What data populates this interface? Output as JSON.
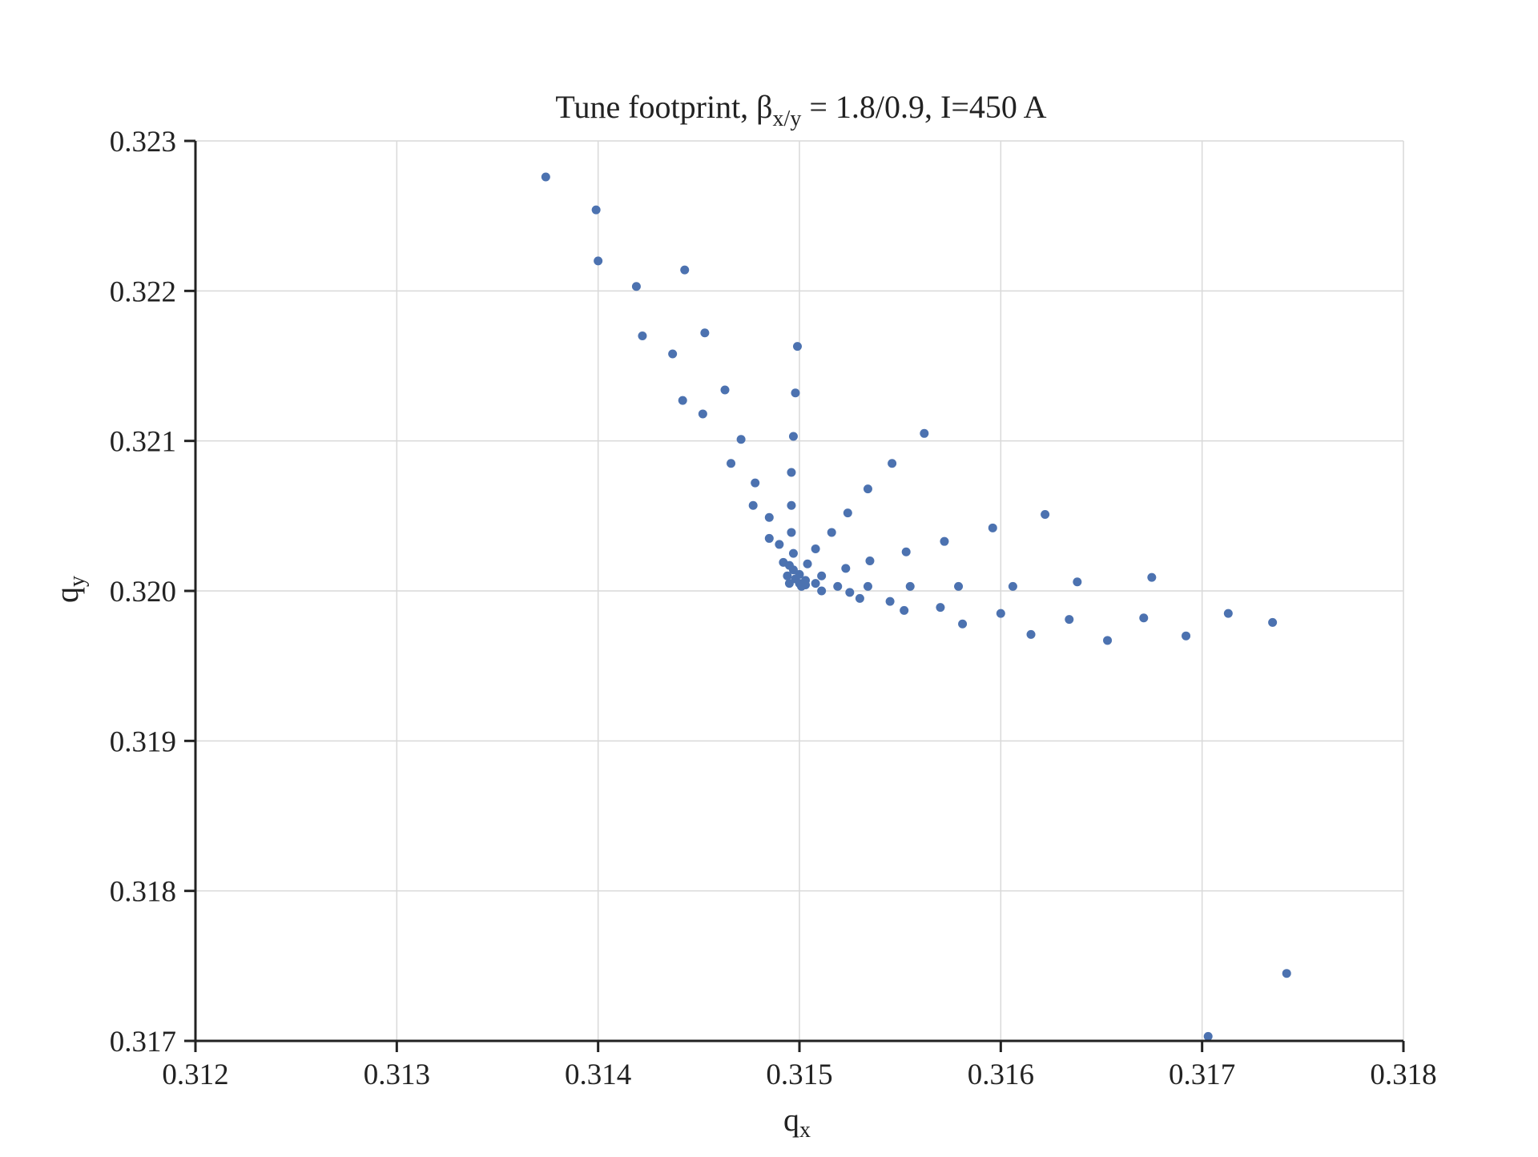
{
  "chart_data": {
    "type": "scatter",
    "title_parts": {
      "prefix": "Tune footprint, β",
      "sub": "x/y",
      "suffix": " = 1.8/0.9, I=450 A"
    },
    "xlabel_parts": {
      "base": "q",
      "sub": "x"
    },
    "ylabel_parts": {
      "base": "q",
      "sub": "y"
    },
    "xlim": [
      0.312,
      0.318
    ],
    "ylim": [
      0.317,
      0.323
    ],
    "xticks": [
      0.312,
      0.313,
      0.314,
      0.315,
      0.316,
      0.317,
      0.318
    ],
    "yticks": [
      0.317,
      0.318,
      0.319,
      0.32,
      0.321,
      0.322,
      0.323
    ],
    "xtick_labels": [
      "0.312",
      "0.313",
      "0.314",
      "0.315",
      "0.316",
      "0.317",
      "0.318"
    ],
    "ytick_labels": [
      "0.317",
      "0.318",
      "0.319",
      "0.320",
      "0.321",
      "0.322",
      "0.323"
    ],
    "grid": true,
    "marker_color": "#4c72b0",
    "points": [
      [
        0.31374,
        0.32276
      ],
      [
        0.31399,
        0.32254
      ],
      [
        0.314,
        0.3222
      ],
      [
        0.31443,
        0.32214
      ],
      [
        0.31419,
        0.32203
      ],
      [
        0.31422,
        0.3217
      ],
      [
        0.31453,
        0.32172
      ],
      [
        0.31437,
        0.32158
      ],
      [
        0.31499,
        0.32163
      ],
      [
        0.31463,
        0.32134
      ],
      [
        0.31442,
        0.32127
      ],
      [
        0.31452,
        0.32118
      ],
      [
        0.31498,
        0.32132
      ],
      [
        0.31471,
        0.32101
      ],
      [
        0.31497,
        0.32103
      ],
      [
        0.31466,
        0.32085
      ],
      [
        0.31496,
        0.32079
      ],
      [
        0.31562,
        0.32105
      ],
      [
        0.31546,
        0.32085
      ],
      [
        0.31478,
        0.32072
      ],
      [
        0.31534,
        0.32068
      ],
      [
        0.31477,
        0.32057
      ],
      [
        0.31496,
        0.32057
      ],
      [
        0.31485,
        0.32049
      ],
      [
        0.31524,
        0.32052
      ],
      [
        0.31596,
        0.32042
      ],
      [
        0.31622,
        0.32051
      ],
      [
        0.31516,
        0.32039
      ],
      [
        0.31496,
        0.32039
      ],
      [
        0.31485,
        0.32035
      ],
      [
        0.3149,
        0.32031
      ],
      [
        0.31572,
        0.32033
      ],
      [
        0.31508,
        0.32028
      ],
      [
        0.31497,
        0.32025
      ],
      [
        0.31553,
        0.32026
      ],
      [
        0.31492,
        0.32019
      ],
      [
        0.31495,
        0.32017
      ],
      [
        0.31504,
        0.32018
      ],
      [
        0.31535,
        0.3202
      ],
      [
        0.31523,
        0.32015
      ],
      [
        0.31497,
        0.32014
      ],
      [
        0.31494,
        0.3201
      ],
      [
        0.315,
        0.32011
      ],
      [
        0.31511,
        0.3201
      ],
      [
        0.31498,
        0.32008
      ],
      [
        0.31503,
        0.32007
      ],
      [
        0.31495,
        0.32005
      ],
      [
        0.315,
        0.32005
      ],
      [
        0.31508,
        0.32005
      ],
      [
        0.31503,
        0.32004
      ],
      [
        0.31501,
        0.32003
      ],
      [
        0.31511,
        0.32
      ],
      [
        0.31519,
        0.32003
      ],
      [
        0.31525,
        0.31999
      ],
      [
        0.3153,
        0.31995
      ],
      [
        0.31534,
        0.32003
      ],
      [
        0.31545,
        0.31993
      ],
      [
        0.31552,
        0.31987
      ],
      [
        0.31555,
        0.32003
      ],
      [
        0.3157,
        0.31989
      ],
      [
        0.31579,
        0.32003
      ],
      [
        0.31581,
        0.31978
      ],
      [
        0.316,
        0.31985
      ],
      [
        0.31606,
        0.32003
      ],
      [
        0.31615,
        0.31971
      ],
      [
        0.31634,
        0.31981
      ],
      [
        0.31638,
        0.32006
      ],
      [
        0.31653,
        0.31967
      ],
      [
        0.31671,
        0.31982
      ],
      [
        0.31675,
        0.32009
      ],
      [
        0.31692,
        0.3197
      ],
      [
        0.31713,
        0.31985
      ],
      [
        0.31735,
        0.31979
      ],
      [
        0.31742,
        0.31745
      ],
      [
        0.31703,
        0.31703
      ]
    ]
  }
}
